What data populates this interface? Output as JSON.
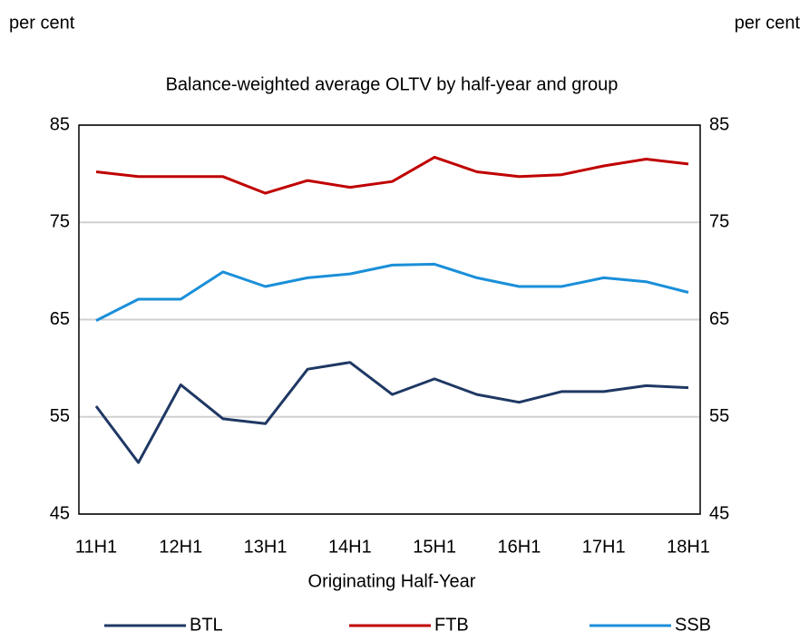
{
  "chart_data": {
    "type": "line",
    "title": "Balance-weighted average OLTV by half-year and group",
    "y_label": "per cent",
    "y2_label": "per cent",
    "x_label": "Originating Half-Year",
    "categories": [
      "11H1",
      null,
      "12H1",
      null,
      "13H1",
      null,
      "14H1",
      null,
      "15H1",
      null,
      "16H1",
      null,
      "17H1",
      null,
      "18H1"
    ],
    "series": [
      {
        "name": "BTL",
        "color": "#1f3864",
        "values": [
          56.1,
          50.3,
          58.3,
          54.8,
          54.3,
          59.9,
          60.6,
          57.3,
          58.9,
          57.3,
          56.5,
          57.6,
          57.6,
          58.2,
          58.0
        ]
      },
      {
        "name": "FTB",
        "color": "#c00000",
        "values": [
          80.2,
          79.7,
          79.7,
          79.7,
          78.0,
          79.3,
          78.6,
          79.2,
          81.7,
          80.2,
          79.7,
          79.9,
          80.8,
          81.5,
          81.0
        ]
      },
      {
        "name": "SSB",
        "color": "#1a8fd9",
        "values": [
          64.9,
          67.1,
          67.1,
          69.9,
          68.4,
          69.3,
          69.7,
          70.6,
          70.7,
          69.3,
          68.4,
          68.4,
          69.3,
          68.9,
          67.8
        ]
      }
    ],
    "ylim": [
      45,
      85
    ],
    "yticks": [
      45,
      55,
      65,
      75,
      85
    ],
    "y2lim": [
      45,
      85
    ],
    "y2ticks": [
      45,
      55,
      65,
      75,
      85
    ],
    "grid": true,
    "legend": "bottom"
  }
}
